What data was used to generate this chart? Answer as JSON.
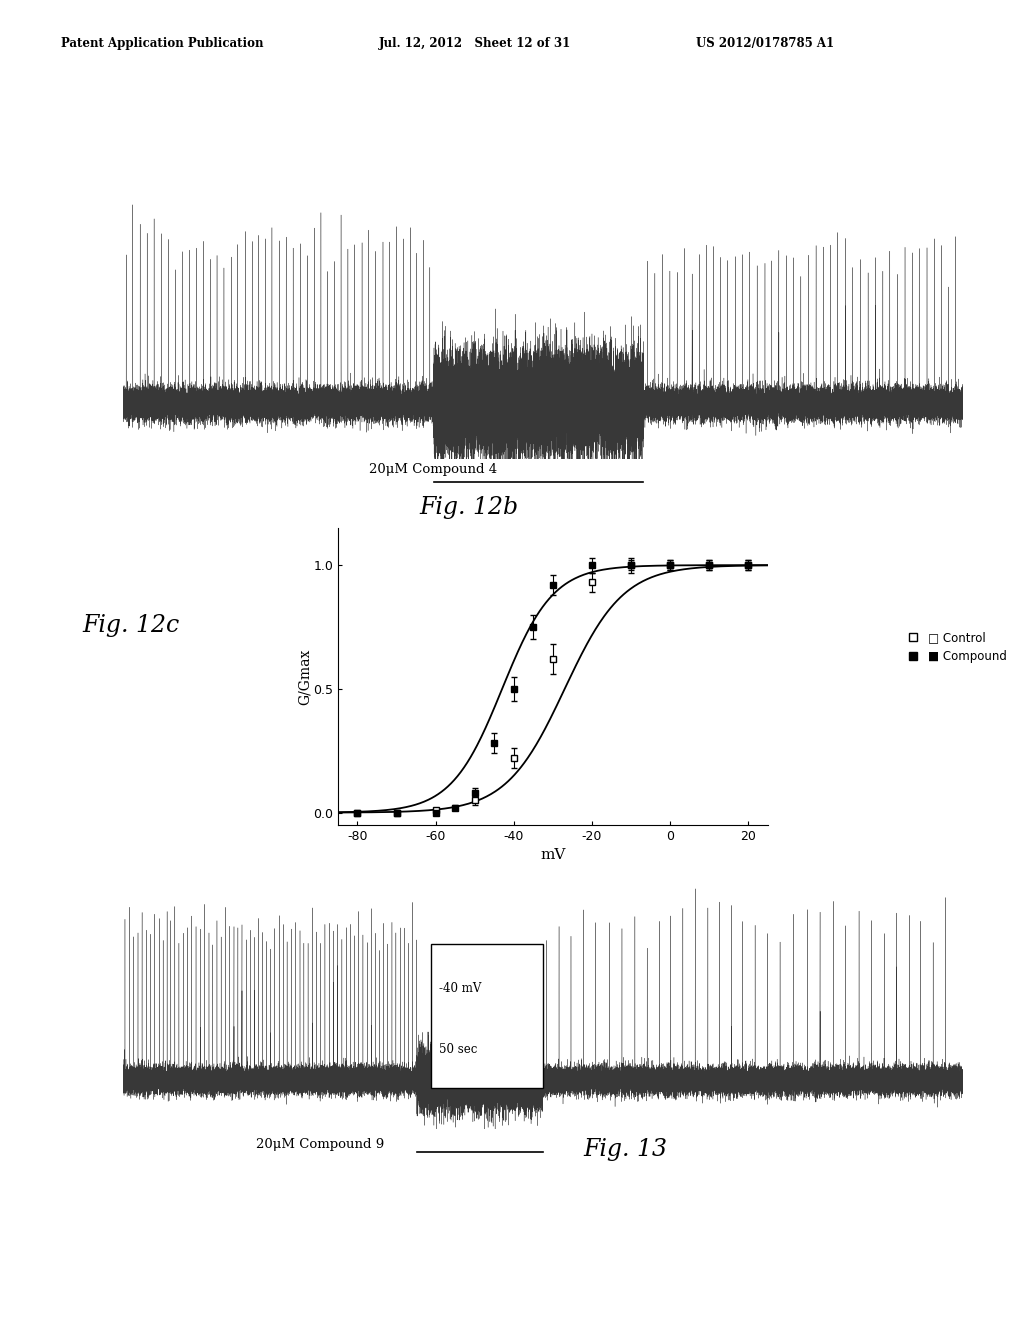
{
  "header_left": "Patent Application Publication",
  "header_mid": "Jul. 12, 2012   Sheet 12 of 31",
  "header_right": "US 2012/0178785 A1",
  "fig12b_label": "Fig. 12b",
  "fig12b_caption": "20μM Compound 4",
  "fig12c_label": "Fig. 12c",
  "fig13_label": "Fig. 13",
  "fig13_caption": "20μM Compound 9",
  "scalebox_mv": "-40 mV",
  "scalebox_sec": "50 sec",
  "control_x": [
    -80,
    -70,
    -60,
    -50,
    -40,
    -30,
    -20,
    -10,
    0,
    10,
    20
  ],
  "control_y": [
    0.0,
    0.0,
    0.01,
    0.05,
    0.22,
    0.62,
    0.93,
    1.0,
    1.0,
    1.0,
    1.0
  ],
  "control_yerr": [
    0.005,
    0.005,
    0.01,
    0.02,
    0.04,
    0.06,
    0.04,
    0.03,
    0.02,
    0.02,
    0.02
  ],
  "compound_x": [
    -80,
    -70,
    -60,
    -55,
    -50,
    -45,
    -40,
    -35,
    -30,
    -20,
    -10,
    0,
    10,
    20
  ],
  "compound_y": [
    0.0,
    0.0,
    0.0,
    0.02,
    0.08,
    0.28,
    0.5,
    0.75,
    0.92,
    1.0,
    1.0,
    1.0,
    1.0,
    1.0
  ],
  "compound_yerr": [
    0.005,
    0.005,
    0.005,
    0.01,
    0.02,
    0.04,
    0.05,
    0.05,
    0.04,
    0.03,
    0.02,
    0.02,
    0.02,
    0.02
  ],
  "xlabel": "mV",
  "ylabel": "G/Gmax",
  "xlim": [
    -85,
    25
  ],
  "ylim": [
    -0.05,
    1.15
  ],
  "xticks": [
    -80,
    -60,
    -40,
    -20,
    0,
    20
  ],
  "yticks": [
    0.0,
    0.5,
    1.0
  ],
  "ytick_labels": [
    "0.0",
    "0.5",
    "1.0"
  ],
  "background_color": "#ffffff"
}
